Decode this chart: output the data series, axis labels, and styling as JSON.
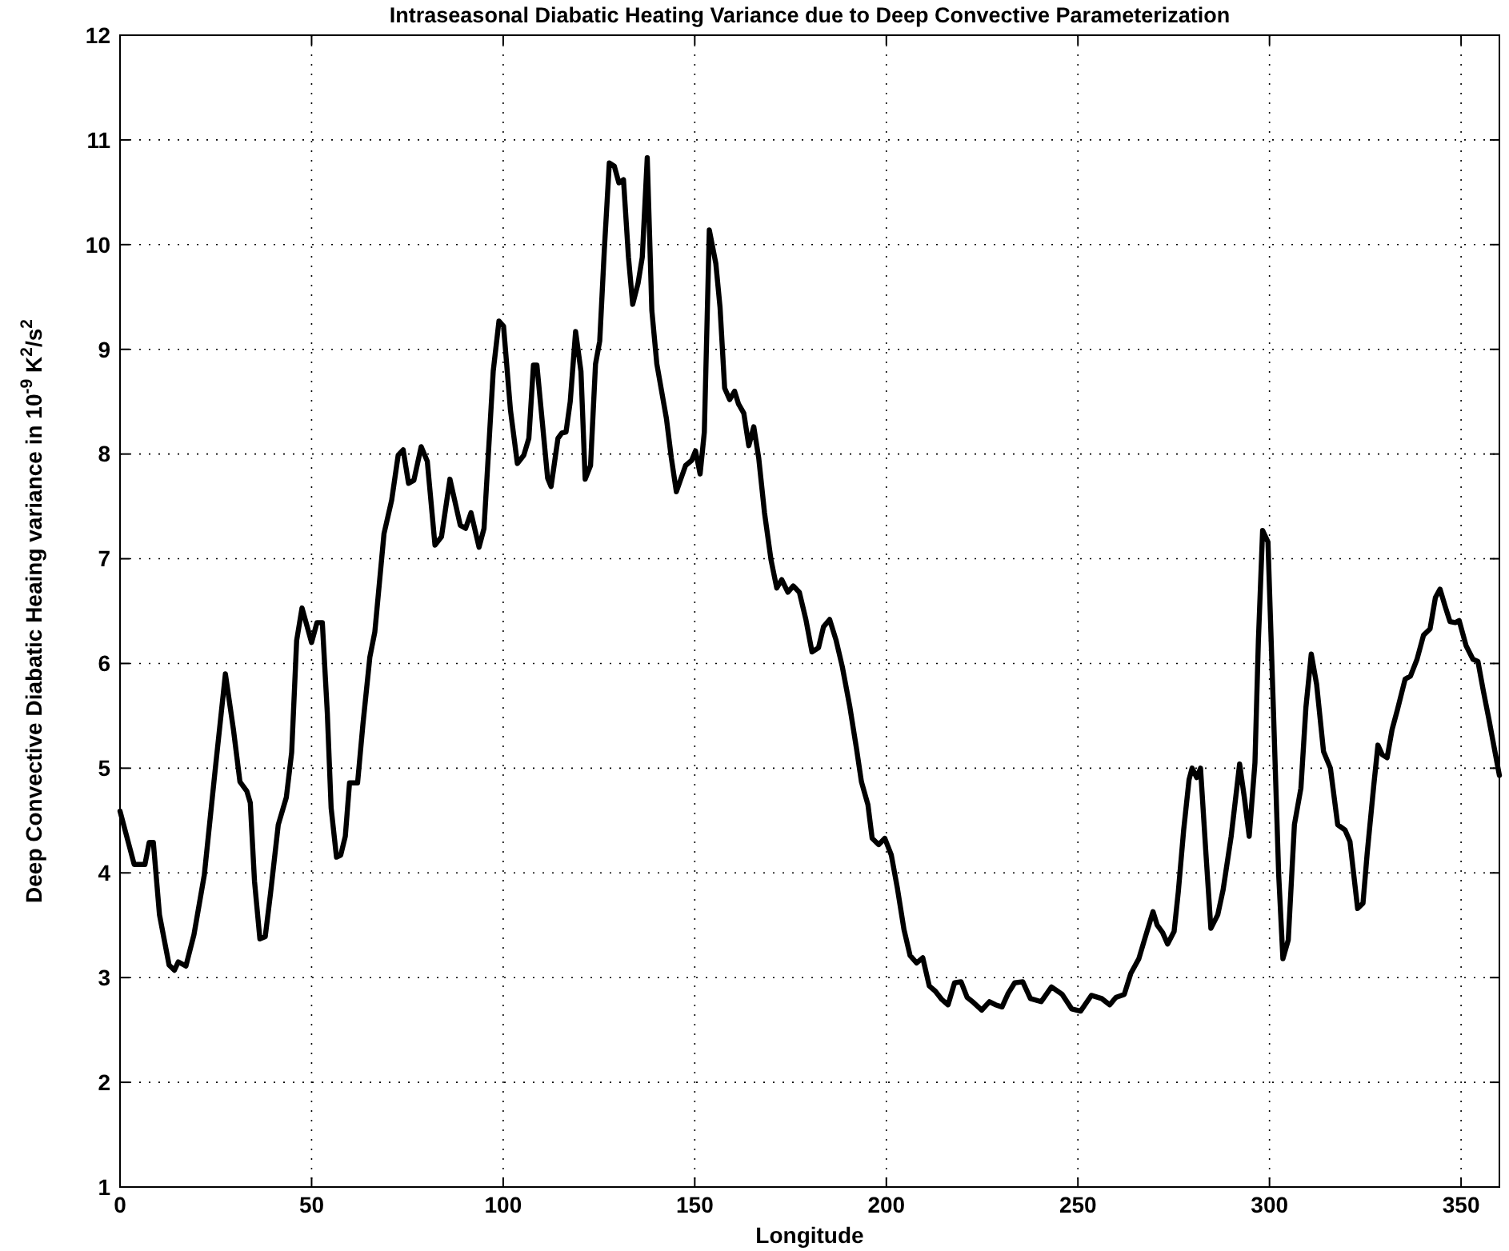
{
  "chart_data": {
    "type": "line",
    "title": "Intraseasonal Diabatic Heating Variance due to Deep Convective Parameterization",
    "xlabel": "Longitude",
    "ylabel": "Deep Convective Diabatic Heaing variance in 10$^{-9}$ K$^{2}$/s$^{2}$",
    "xlim": [
      0,
      360
    ],
    "ylim": [
      1,
      12
    ],
    "xticks": [
      0,
      50,
      100,
      150,
      200,
      250,
      300,
      350
    ],
    "yticks": [
      1,
      2,
      3,
      4,
      5,
      6,
      7,
      8,
      9,
      10,
      11,
      12
    ],
    "grid": true,
    "line_style": "solid",
    "marker": "none",
    "series": [
      {
        "color": "#000000",
        "x": [
          0,
          2.1,
          3.7,
          6.5,
          7.6,
          8.7,
          10.3,
          12.8,
          14.2,
          15.2,
          17.2,
          19.3,
          22,
          24.8,
          27.5,
          29.6,
          31.3,
          33.1,
          34,
          35.1,
          36.5,
          37.9,
          39.3,
          41.3,
          43.4,
          44.8,
          46.1,
          47.5,
          50,
          51.4,
          52.8,
          54.1,
          55.1,
          56.5,
          57.6,
          58.8,
          59.9,
          62,
          63.4,
          65.2,
          66.5,
          68.9,
          70.9,
          72.6,
          73.9,
          75.3,
          76.7,
          78.6,
          80.2,
          82.2,
          83.9,
          86.1,
          88.8,
          90.2,
          91.6,
          93.7,
          95,
          97.4,
          98.9,
          100.1,
          101.9,
          103.7,
          105.4,
          106.7,
          107.9,
          108.8,
          110.2,
          111.6,
          112.5,
          114.3,
          115.3,
          116.4,
          117.5,
          118.9,
          120.3,
          121.4,
          122.8,
          124.1,
          125.2,
          126.4,
          127.7,
          129,
          130.2,
          131.4,
          132.7,
          133.8,
          135.2,
          136.3,
          137.6,
          138.8,
          140.1,
          142.6,
          143.9,
          145.2,
          147.6,
          149.2,
          150.2,
          151.4,
          152.5,
          153.8,
          155.5,
          156.6,
          157.8,
          159.1,
          160.4,
          161.4,
          162.8,
          164.1,
          165.4,
          166.7,
          168.2,
          169.9,
          171.4,
          172.7,
          174.3,
          175.7,
          177.3,
          179,
          180.6,
          182.3,
          183.6,
          185.2,
          186.9,
          188.5,
          190.5,
          192.2,
          193.5,
          195.2,
          196.3,
          198,
          199.6,
          201.3,
          202.9,
          204.6,
          206.2,
          207.9,
          209.5,
          211.2,
          212.8,
          214.5,
          216.1,
          217.8,
          219.5,
          221.1,
          222.8,
          224.9,
          226.9,
          228.5,
          230.2,
          231.8,
          233.5,
          235.6,
          237.6,
          240.4,
          243.1,
          245.9,
          248.4,
          250.7,
          253.5,
          256.2,
          258.3,
          259.9,
          262.1,
          263.8,
          265.9,
          267.2,
          269.6,
          270.7,
          272.1,
          273.4,
          275.1,
          276.2,
          277.6,
          279,
          279.8,
          281,
          282,
          283.4,
          284.7,
          286.5,
          287.9,
          290,
          292.2,
          293.4,
          294.7,
          296.2,
          297.1,
          298.2,
          299.6,
          301,
          302.4,
          303.5,
          304.9,
          306.5,
          308.2,
          309.5,
          310.9,
          312.3,
          314.1,
          315.9,
          317.8,
          319.7,
          321,
          323,
          324.4,
          325.5,
          327.2,
          328.3,
          329.4,
          330.7,
          332,
          333.4,
          335.4,
          336.8,
          338.5,
          340.2,
          341.9,
          343.3,
          344.5,
          345.8,
          347.1,
          348.5,
          349.5,
          351.3,
          353.1,
          354.4,
          355.8,
          357.2,
          360
        ],
        "values": [
          4.59,
          4.3,
          4.08,
          4.08,
          4.29,
          4.29,
          3.6,
          3.12,
          3.07,
          3.15,
          3.11,
          3.41,
          3.98,
          4.97,
          5.9,
          5.37,
          4.87,
          4.78,
          4.67,
          3.92,
          3.37,
          3.39,
          3.81,
          4.46,
          4.72,
          5.15,
          6.22,
          6.53,
          6.2,
          6.39,
          6.39,
          5.53,
          4.62,
          4.15,
          4.17,
          4.35,
          4.86,
          4.86,
          5.42,
          6.06,
          6.3,
          7.24,
          7.56,
          7.99,
          8.04,
          7.72,
          7.75,
          8.07,
          7.93,
          7.13,
          7.21,
          7.76,
          7.32,
          7.29,
          7.44,
          7.11,
          7.29,
          8.79,
          9.27,
          9.22,
          8.42,
          7.91,
          7.99,
          8.15,
          8.85,
          8.85,
          8.31,
          7.77,
          7.69,
          8.15,
          8.2,
          8.21,
          8.5,
          9.17,
          8.79,
          7.76,
          7.89,
          8.86,
          9.08,
          9.95,
          10.78,
          10.75,
          10.59,
          10.62,
          9.88,
          9.43,
          9.63,
          9.88,
          10.83,
          9.37,
          8.86,
          8.34,
          7.96,
          7.64,
          7.89,
          7.94,
          8.03,
          7.81,
          8.21,
          10.14,
          9.82,
          9.4,
          8.63,
          8.52,
          8.6,
          8.48,
          8.39,
          8.08,
          8.26,
          7.96,
          7.44,
          6.99,
          6.72,
          6.8,
          6.68,
          6.74,
          6.68,
          6.42,
          6.11,
          6.15,
          6.35,
          6.42,
          6.22,
          5.97,
          5.58,
          5.19,
          4.87,
          4.65,
          4.33,
          4.27,
          4.33,
          4.17,
          3.85,
          3.46,
          3.21,
          3.14,
          3.19,
          2.92,
          2.87,
          2.79,
          2.74,
          2.95,
          2.96,
          2.81,
          2.76,
          2.69,
          2.77,
          2.74,
          2.72,
          2.85,
          2.95,
          2.96,
          2.8,
          2.77,
          2.91,
          2.84,
          2.7,
          2.68,
          2.83,
          2.8,
          2.74,
          2.81,
          2.84,
          3.04,
          3.18,
          3.34,
          3.63,
          3.5,
          3.43,
          3.32,
          3.44,
          3.82,
          4.41,
          4.89,
          5,
          4.91,
          5,
          4.19,
          3.47,
          3.6,
          3.84,
          4.35,
          5.04,
          4.73,
          4.35,
          5.05,
          6.22,
          7.27,
          7.16,
          5.58,
          3.98,
          3.18,
          3.36,
          4.46,
          4.81,
          5.58,
          6.09,
          5.8,
          5.16,
          5,
          4.46,
          4.41,
          4.3,
          3.66,
          3.71,
          4.19,
          4.83,
          5.22,
          5.13,
          5.1,
          5.37,
          5.56,
          5.85,
          5.88,
          6.04,
          6.27,
          6.33,
          6.63,
          6.71,
          6.55,
          6.4,
          6.39,
          6.41,
          6.17,
          6.04,
          6.02,
          5.74,
          5.48,
          4.93
        ]
      }
    ]
  }
}
